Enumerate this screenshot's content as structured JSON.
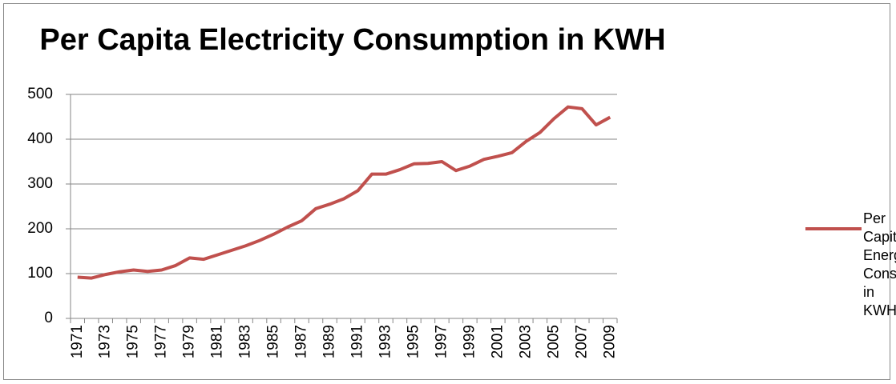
{
  "chart_data": {
    "type": "line",
    "title": "Per Capita Electricity Consumption in KWH",
    "categories": [
      "1971",
      null,
      "1973",
      null,
      "1975",
      null,
      "1977",
      null,
      "1979",
      null,
      "1981",
      null,
      "1983",
      null,
      "1985",
      null,
      "1987",
      null,
      "1989",
      null,
      "1991",
      null,
      "1993",
      null,
      "1995",
      null,
      "1997",
      null,
      "1999",
      null,
      "2001",
      null,
      "2003",
      null,
      "2005",
      null,
      "2007",
      null,
      "2009"
    ],
    "series": [
      {
        "name": "Per Capita Energy Consumption in KWH",
        "color": "#c0504d",
        "values": [
          92,
          90,
          98,
          104,
          108,
          105,
          108,
          118,
          135,
          132,
          142,
          152,
          162,
          174,
          188,
          204,
          218,
          245,
          255,
          267,
          285,
          322,
          322,
          332,
          345,
          346,
          350,
          330,
          340,
          355,
          362,
          370,
          395,
          415,
          446,
          472,
          468,
          432,
          449
        ]
      }
    ],
    "ylim": [
      0,
      500
    ],
    "yticks": [
      0,
      100,
      200,
      300,
      400,
      500
    ],
    "grid": true,
    "legend": "right"
  }
}
